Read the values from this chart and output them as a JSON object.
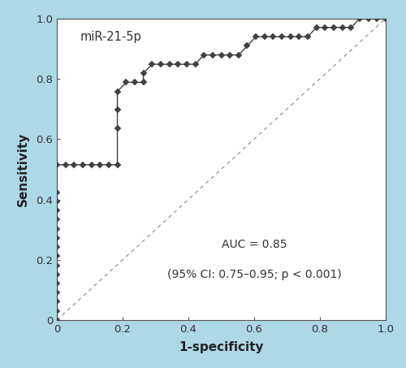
{
  "title": "",
  "xlabel": "1-specificity",
  "ylabel": "Sensitivity",
  "label": "miR-21-5p",
  "auc_text_line1": "AUC = 0.85",
  "auc_text_line2": "(95% CI: 0.75–0.95; p < 0.001)",
  "background_color": "#ADD8E6",
  "plot_bg_color": "#FFFFFF",
  "line_color": "#404040",
  "marker_color": "#404040",
  "diagonal_color": "#888888",
  "roc_x": [
    0.0,
    0.0,
    0.0,
    0.0,
    0.0,
    0.0,
    0.0,
    0.0,
    0.0,
    0.0,
    0.0,
    0.0,
    0.0,
    0.0,
    0.0,
    0.0,
    0.026,
    0.053,
    0.079,
    0.105,
    0.132,
    0.158,
    0.184,
    0.184,
    0.184,
    0.184,
    0.211,
    0.237,
    0.263,
    0.263,
    0.289,
    0.316,
    0.342,
    0.368,
    0.395,
    0.421,
    0.447,
    0.474,
    0.5,
    0.526,
    0.553,
    0.579,
    0.605,
    0.632,
    0.658,
    0.684,
    0.711,
    0.737,
    0.763,
    0.789,
    0.816,
    0.842,
    0.868,
    0.895,
    0.921,
    0.947,
    0.974,
    1.0
  ],
  "roc_y": [
    0.0,
    0.03,
    0.061,
    0.091,
    0.121,
    0.152,
    0.182,
    0.212,
    0.242,
    0.273,
    0.303,
    0.333,
    0.364,
    0.394,
    0.424,
    0.515,
    0.515,
    0.515,
    0.515,
    0.515,
    0.515,
    0.515,
    0.515,
    0.636,
    0.697,
    0.758,
    0.788,
    0.788,
    0.788,
    0.818,
    0.848,
    0.848,
    0.848,
    0.848,
    0.848,
    0.848,
    0.879,
    0.879,
    0.879,
    0.879,
    0.879,
    0.909,
    0.939,
    0.939,
    0.939,
    0.939,
    0.939,
    0.939,
    0.939,
    0.97,
    0.97,
    0.97,
    0.97,
    0.97,
    1.0,
    1.0,
    1.0,
    1.0
  ],
  "xlim": [
    0.0,
    1.0
  ],
  "ylim": [
    0.0,
    1.0
  ],
  "xticks": [
    0.0,
    0.2,
    0.4,
    0.6,
    0.8,
    1.0
  ],
  "yticks": [
    0.0,
    0.2,
    0.4,
    0.6,
    0.8,
    1.0
  ],
  "figsize": [
    5.0,
    4.53
  ],
  "dpi": 100
}
